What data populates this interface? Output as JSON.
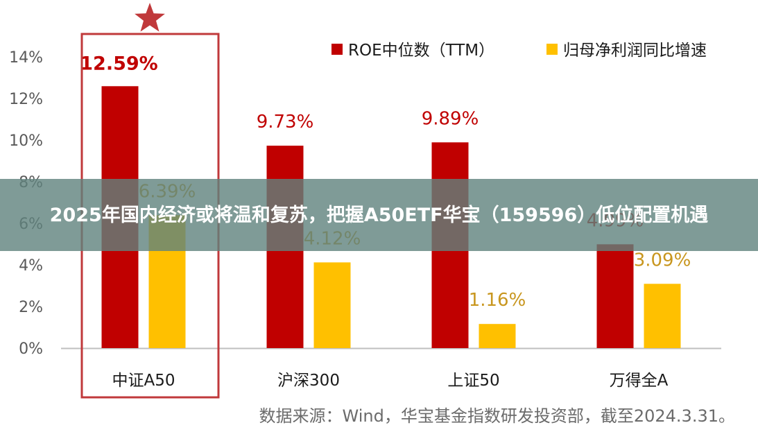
{
  "chart_data": {
    "type": "bar",
    "categories": [
      "中证A50",
      "沪深300",
      "上证50",
      "万得全A"
    ],
    "series": [
      {
        "name": "ROE中位数（TTM）",
        "color": "#C00000",
        "values": [
          12.59,
          9.73,
          9.89,
          4.99
        ],
        "labels": [
          "12.59%",
          "9.73%",
          "9.89%",
          "4.99%"
        ]
      },
      {
        "name": "归母净利润同比增速",
        "color": "#FFC000",
        "values": [
          6.39,
          4.12,
          1.16,
          3.09
        ],
        "labels": [
          "6.39%",
          "4.12%",
          "1.16%",
          "3.09%"
        ]
      }
    ],
    "yticks": [
      "0%",
      "2%",
      "4%",
      "6%",
      "8%",
      "10%",
      "12%",
      "14%"
    ],
    "ylim": [
      0,
      14
    ],
    "legend": "top-right",
    "highlight": {
      "category": "中证A50",
      "marker": "star-icon",
      "color": "#C0393B"
    }
  },
  "overlay": {
    "title": "2025年国内经济或将温和复苏，把握A50ETF华宝（159596）低位配置机遇"
  },
  "source": "数据来源：Wind，华宝基金指数研发投资部，截至2024.3.31。",
  "colors": {
    "red_label": "#C00000",
    "gold_label": "#C8961E",
    "axis": "#BFBFBF"
  }
}
